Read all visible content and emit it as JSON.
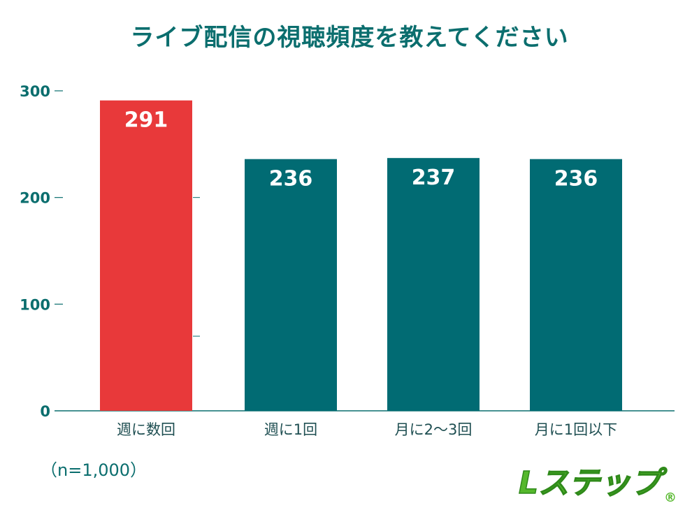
{
  "chart_data": {
    "type": "bar",
    "title": "ライブ配信の視聴頻度を教えてください",
    "categories": [
      "週に数回",
      "週に1回",
      "月に2〜3回",
      "月に1回以下"
    ],
    "values": [
      291,
      236,
      237,
      236
    ],
    "ylim": [
      0,
      300
    ],
    "yticks": [
      0,
      100,
      200,
      300
    ],
    "grid": false,
    "colors": [
      "#e8393a",
      "#016b73",
      "#016b73",
      "#016b73"
    ],
    "axis_color": "#0b6e6e",
    "label_color": "#ffffff"
  },
  "footnote": "（n=1,000）",
  "logo": {
    "text": "Lステップ",
    "mark": "®",
    "color": "#55b82c"
  }
}
